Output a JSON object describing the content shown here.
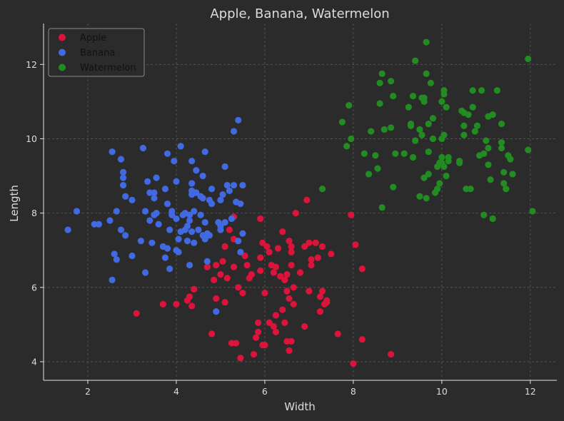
{
  "chart_data": {
    "type": "scatter",
    "title": "Apple, Banana, Watermelon",
    "xlabel": "Width",
    "ylabel": "Length",
    "xlim": [
      1,
      12.6
    ],
    "ylim": [
      3.5,
      13.1
    ],
    "xticks": [
      2,
      4,
      6,
      8,
      10,
      12
    ],
    "yticks": [
      4,
      6,
      8,
      10,
      12
    ],
    "grid": true,
    "legend_position": "top-left",
    "series": [
      {
        "name": "Apple",
        "color": "#dc143c",
        "points": [
          [
            3.1,
            5.3
          ],
          [
            3.7,
            5.55
          ],
          [
            4.0,
            5.55
          ],
          [
            4.25,
            5.65
          ],
          [
            4.3,
            5.75
          ],
          [
            4.35,
            5.5
          ],
          [
            4.4,
            5.95
          ],
          [
            4.7,
            6.55
          ],
          [
            4.8,
            4.75
          ],
          [
            4.85,
            6.2
          ],
          [
            4.9,
            5.7
          ],
          [
            4.9,
            6.6
          ],
          [
            5.0,
            6.35
          ],
          [
            5.05,
            6.7
          ],
          [
            5.1,
            5.6
          ],
          [
            5.1,
            7.1
          ],
          [
            5.15,
            6.25
          ],
          [
            5.2,
            7.55
          ],
          [
            5.25,
            4.5
          ],
          [
            5.3,
            6.55
          ],
          [
            5.3,
            7.3
          ],
          [
            5.3,
            7.9
          ],
          [
            5.35,
            4.5
          ],
          [
            5.4,
            6.0
          ],
          [
            5.45,
            4.1
          ],
          [
            5.5,
            5.85
          ],
          [
            5.55,
            6.85
          ],
          [
            5.6,
            6.6
          ],
          [
            5.65,
            6.25
          ],
          [
            5.7,
            6.35
          ],
          [
            5.75,
            4.2
          ],
          [
            5.8,
            4.65
          ],
          [
            5.85,
            5.05
          ],
          [
            5.85,
            4.8
          ],
          [
            5.9,
            6.8
          ],
          [
            5.9,
            6.45
          ],
          [
            5.95,
            7.2
          ],
          [
            5.95,
            4.45
          ],
          [
            6.0,
            5.85
          ],
          [
            6.0,
            4.45
          ],
          [
            6.05,
            7.1
          ],
          [
            6.1,
            5.05
          ],
          [
            6.1,
            6.95
          ],
          [
            6.15,
            6.6
          ],
          [
            6.2,
            6.4
          ],
          [
            6.2,
            4.95
          ],
          [
            6.25,
            5.25
          ],
          [
            6.25,
            6.55
          ],
          [
            6.25,
            4.8
          ],
          [
            6.3,
            7.05
          ],
          [
            6.35,
            6.3
          ],
          [
            6.4,
            5.4
          ],
          [
            6.4,
            7.5
          ],
          [
            6.45,
            5.05
          ],
          [
            6.45,
            6.2
          ],
          [
            6.5,
            4.55
          ],
          [
            6.5,
            5.9
          ],
          [
            6.5,
            6.35
          ],
          [
            6.55,
            4.3
          ],
          [
            6.55,
            5.7
          ],
          [
            6.55,
            7.25
          ],
          [
            6.6,
            6.95
          ],
          [
            6.6,
            7.1
          ],
          [
            6.6,
            6.6
          ],
          [
            6.6,
            4.55
          ],
          [
            6.65,
            6.0
          ],
          [
            6.65,
            5.55
          ],
          [
            6.7,
            8.0
          ],
          [
            6.8,
            6.4
          ],
          [
            6.9,
            7.1
          ],
          [
            6.9,
            4.95
          ],
          [
            6.95,
            8.35
          ],
          [
            7.0,
            7.2
          ],
          [
            7.0,
            5.9
          ],
          [
            7.05,
            6.75
          ],
          [
            7.05,
            6.6
          ],
          [
            7.15,
            7.2
          ],
          [
            7.2,
            6.8
          ],
          [
            7.25,
            5.75
          ],
          [
            7.25,
            5.35
          ],
          [
            7.3,
            5.9
          ],
          [
            7.3,
            7.1
          ],
          [
            7.35,
            5.55
          ],
          [
            7.4,
            5.6
          ],
          [
            7.4,
            5.65
          ],
          [
            7.5,
            6.9
          ],
          [
            7.65,
            4.75
          ],
          [
            7.95,
            7.95
          ],
          [
            8.0,
            3.95
          ],
          [
            8.05,
            7.15
          ],
          [
            8.2,
            6.5
          ],
          [
            8.2,
            4.6
          ],
          [
            8.85,
            4.2
          ],
          [
            5.9,
            7.85
          ]
        ]
      },
      {
        "name": "Banana",
        "color": "#4169e1",
        "points": [
          [
            1.55,
            7.55
          ],
          [
            1.75,
            8.05
          ],
          [
            2.15,
            7.7
          ],
          [
            2.25,
            7.7
          ],
          [
            2.5,
            7.8
          ],
          [
            2.55,
            9.65
          ],
          [
            2.55,
            6.2
          ],
          [
            2.6,
            6.9
          ],
          [
            2.65,
            8.05
          ],
          [
            2.65,
            6.75
          ],
          [
            2.75,
            9.45
          ],
          [
            2.75,
            7.55
          ],
          [
            2.8,
            9.1
          ],
          [
            2.8,
            8.75
          ],
          [
            2.8,
            8.95
          ],
          [
            2.85,
            7.4
          ],
          [
            2.85,
            8.45
          ],
          [
            3.0,
            8.35
          ],
          [
            3.0,
            6.85
          ],
          [
            3.2,
            7.25
          ],
          [
            3.25,
            9.75
          ],
          [
            3.3,
            8.05
          ],
          [
            3.3,
            6.4
          ],
          [
            3.35,
            8.85
          ],
          [
            3.4,
            8.55
          ],
          [
            3.4,
            7.8
          ],
          [
            3.45,
            7.2
          ],
          [
            3.5,
            7.95
          ],
          [
            3.5,
            8.55
          ],
          [
            3.5,
            8.4
          ],
          [
            3.55,
            8.95
          ],
          [
            3.55,
            8.0
          ],
          [
            3.6,
            7.7
          ],
          [
            3.7,
            7.1
          ],
          [
            3.75,
            8.65
          ],
          [
            3.75,
            6.8
          ],
          [
            3.8,
            7.05
          ],
          [
            3.8,
            9.6
          ],
          [
            3.8,
            8.25
          ],
          [
            3.85,
            6.5
          ],
          [
            3.85,
            7.55
          ],
          [
            3.9,
            7.95
          ],
          [
            3.9,
            8.05
          ],
          [
            3.95,
            9.4
          ],
          [
            4.0,
            8.85
          ],
          [
            4.0,
            7.0
          ],
          [
            4.05,
            7.3
          ],
          [
            4.05,
            6.95
          ],
          [
            4.1,
            7.5
          ],
          [
            4.1,
            9.8
          ],
          [
            4.15,
            7.95
          ],
          [
            4.2,
            8.0
          ],
          [
            4.2,
            7.55
          ],
          [
            4.25,
            7.65
          ],
          [
            4.25,
            7.25
          ],
          [
            4.3,
            6.6
          ],
          [
            4.3,
            7.8
          ],
          [
            4.3,
            7.95
          ],
          [
            4.35,
            8.5
          ],
          [
            4.35,
            8.6
          ],
          [
            4.35,
            9.4
          ],
          [
            4.35,
            8.8
          ],
          [
            4.35,
            7.5
          ],
          [
            4.4,
            7.2
          ],
          [
            4.4,
            8.05
          ],
          [
            4.45,
            8.55
          ],
          [
            4.45,
            9.15
          ],
          [
            4.5,
            7.55
          ],
          [
            4.55,
            8.45
          ],
          [
            4.55,
            7.95
          ],
          [
            4.6,
            8.4
          ],
          [
            4.6,
            9.0
          ],
          [
            4.6,
            7.4
          ],
          [
            4.65,
            7.3
          ],
          [
            4.65,
            7.75
          ],
          [
            4.65,
            9.65
          ],
          [
            4.7,
            6.7
          ],
          [
            4.7,
            7.45
          ],
          [
            4.75,
            8.35
          ],
          [
            4.8,
            8.65
          ],
          [
            4.8,
            8.25
          ],
          [
            4.9,
            5.35
          ],
          [
            4.95,
            7.75
          ],
          [
            5.0,
            7.65
          ],
          [
            5.0,
            7.55
          ],
          [
            5.0,
            8.35
          ],
          [
            5.05,
            8.5
          ],
          [
            5.1,
            7.75
          ],
          [
            5.1,
            9.25
          ],
          [
            5.15,
            8.75
          ],
          [
            5.2,
            8.6
          ],
          [
            5.25,
            7.85
          ],
          [
            5.3,
            10.2
          ],
          [
            5.3,
            8.75
          ],
          [
            5.35,
            8.3
          ],
          [
            5.4,
            7.25
          ],
          [
            5.4,
            10.5
          ],
          [
            5.45,
            8.25
          ],
          [
            5.5,
            8.75
          ],
          [
            5.5,
            7.45
          ],
          [
            5.45,
            6.95
          ],
          [
            4.0,
            7.85
          ],
          [
            4.75,
            7.4
          ]
        ]
      },
      {
        "name": "Watermelon",
        "color": "#228b22",
        "points": [
          [
            7.3,
            8.65
          ],
          [
            7.75,
            10.45
          ],
          [
            7.85,
            9.8
          ],
          [
            7.9,
            10.9
          ],
          [
            7.95,
            10.0
          ],
          [
            8.25,
            9.6
          ],
          [
            8.35,
            9.05
          ],
          [
            8.4,
            10.2
          ],
          [
            8.5,
            9.55
          ],
          [
            8.55,
            9.2
          ],
          [
            8.6,
            11.5
          ],
          [
            8.6,
            10.95
          ],
          [
            8.65,
            11.75
          ],
          [
            8.65,
            8.15
          ],
          [
            8.7,
            10.25
          ],
          [
            8.85,
            11.55
          ],
          [
            8.85,
            10.3
          ],
          [
            8.9,
            8.7
          ],
          [
            8.9,
            11.15
          ],
          [
            8.95,
            9.6
          ],
          [
            9.15,
            9.6
          ],
          [
            9.25,
            10.85
          ],
          [
            9.3,
            10.35
          ],
          [
            9.3,
            10.4
          ],
          [
            9.35,
            9.5
          ],
          [
            9.35,
            11.15
          ],
          [
            9.4,
            12.1
          ],
          [
            9.4,
            9.95
          ],
          [
            9.5,
            10.25
          ],
          [
            9.5,
            8.45
          ],
          [
            9.55,
            11.1
          ],
          [
            9.55,
            10.1
          ],
          [
            9.6,
            11.1
          ],
          [
            9.6,
            11.0
          ],
          [
            9.6,
            8.95
          ],
          [
            9.65,
            11.75
          ],
          [
            9.65,
            12.6
          ],
          [
            9.65,
            8.4
          ],
          [
            9.7,
            9.65
          ],
          [
            9.7,
            10.4
          ],
          [
            9.7,
            9.05
          ],
          [
            9.75,
            11.5
          ],
          [
            9.8,
            10.55
          ],
          [
            9.8,
            10.0
          ],
          [
            9.85,
            8.55
          ],
          [
            9.9,
            9.25
          ],
          [
            9.9,
            8.65
          ],
          [
            9.95,
            8.8
          ],
          [
            9.95,
            9.35
          ],
          [
            10.0,
            10.0
          ],
          [
            10.0,
            11.0
          ],
          [
            10.0,
            9.5
          ],
          [
            10.0,
            9.35
          ],
          [
            10.05,
            10.1
          ],
          [
            10.05,
            11.3
          ],
          [
            10.05,
            11.2
          ],
          [
            10.05,
            9.25
          ],
          [
            10.1,
            10.85
          ],
          [
            10.1,
            9.0
          ],
          [
            10.15,
            9.4
          ],
          [
            10.15,
            9.5
          ],
          [
            10.4,
            9.4
          ],
          [
            10.4,
            9.35
          ],
          [
            10.45,
            10.75
          ],
          [
            10.5,
            10.7
          ],
          [
            10.5,
            10.35
          ],
          [
            10.5,
            10.1
          ],
          [
            10.55,
            8.65
          ],
          [
            10.6,
            10.65
          ],
          [
            10.65,
            8.65
          ],
          [
            10.7,
            11.3
          ],
          [
            10.7,
            10.85
          ],
          [
            10.75,
            10.2
          ],
          [
            10.8,
            10.35
          ],
          [
            10.85,
            9.55
          ],
          [
            10.9,
            11.3
          ],
          [
            10.95,
            7.95
          ],
          [
            10.95,
            9.6
          ],
          [
            11.0,
            9.95
          ],
          [
            11.05,
            9.75
          ],
          [
            11.05,
            9.3
          ],
          [
            11.05,
            10.6
          ],
          [
            11.1,
            8.9
          ],
          [
            11.15,
            7.85
          ],
          [
            11.15,
            10.65
          ],
          [
            11.25,
            11.3
          ],
          [
            11.35,
            10.4
          ],
          [
            11.35,
            9.9
          ],
          [
            11.35,
            9.75
          ],
          [
            11.4,
            9.1
          ],
          [
            11.4,
            8.8
          ],
          [
            11.45,
            8.65
          ],
          [
            11.5,
            9.55
          ],
          [
            11.55,
            9.45
          ],
          [
            11.6,
            9.05
          ],
          [
            11.95,
            12.15
          ],
          [
            11.95,
            9.7
          ],
          [
            12.05,
            8.05
          ]
        ]
      }
    ]
  }
}
